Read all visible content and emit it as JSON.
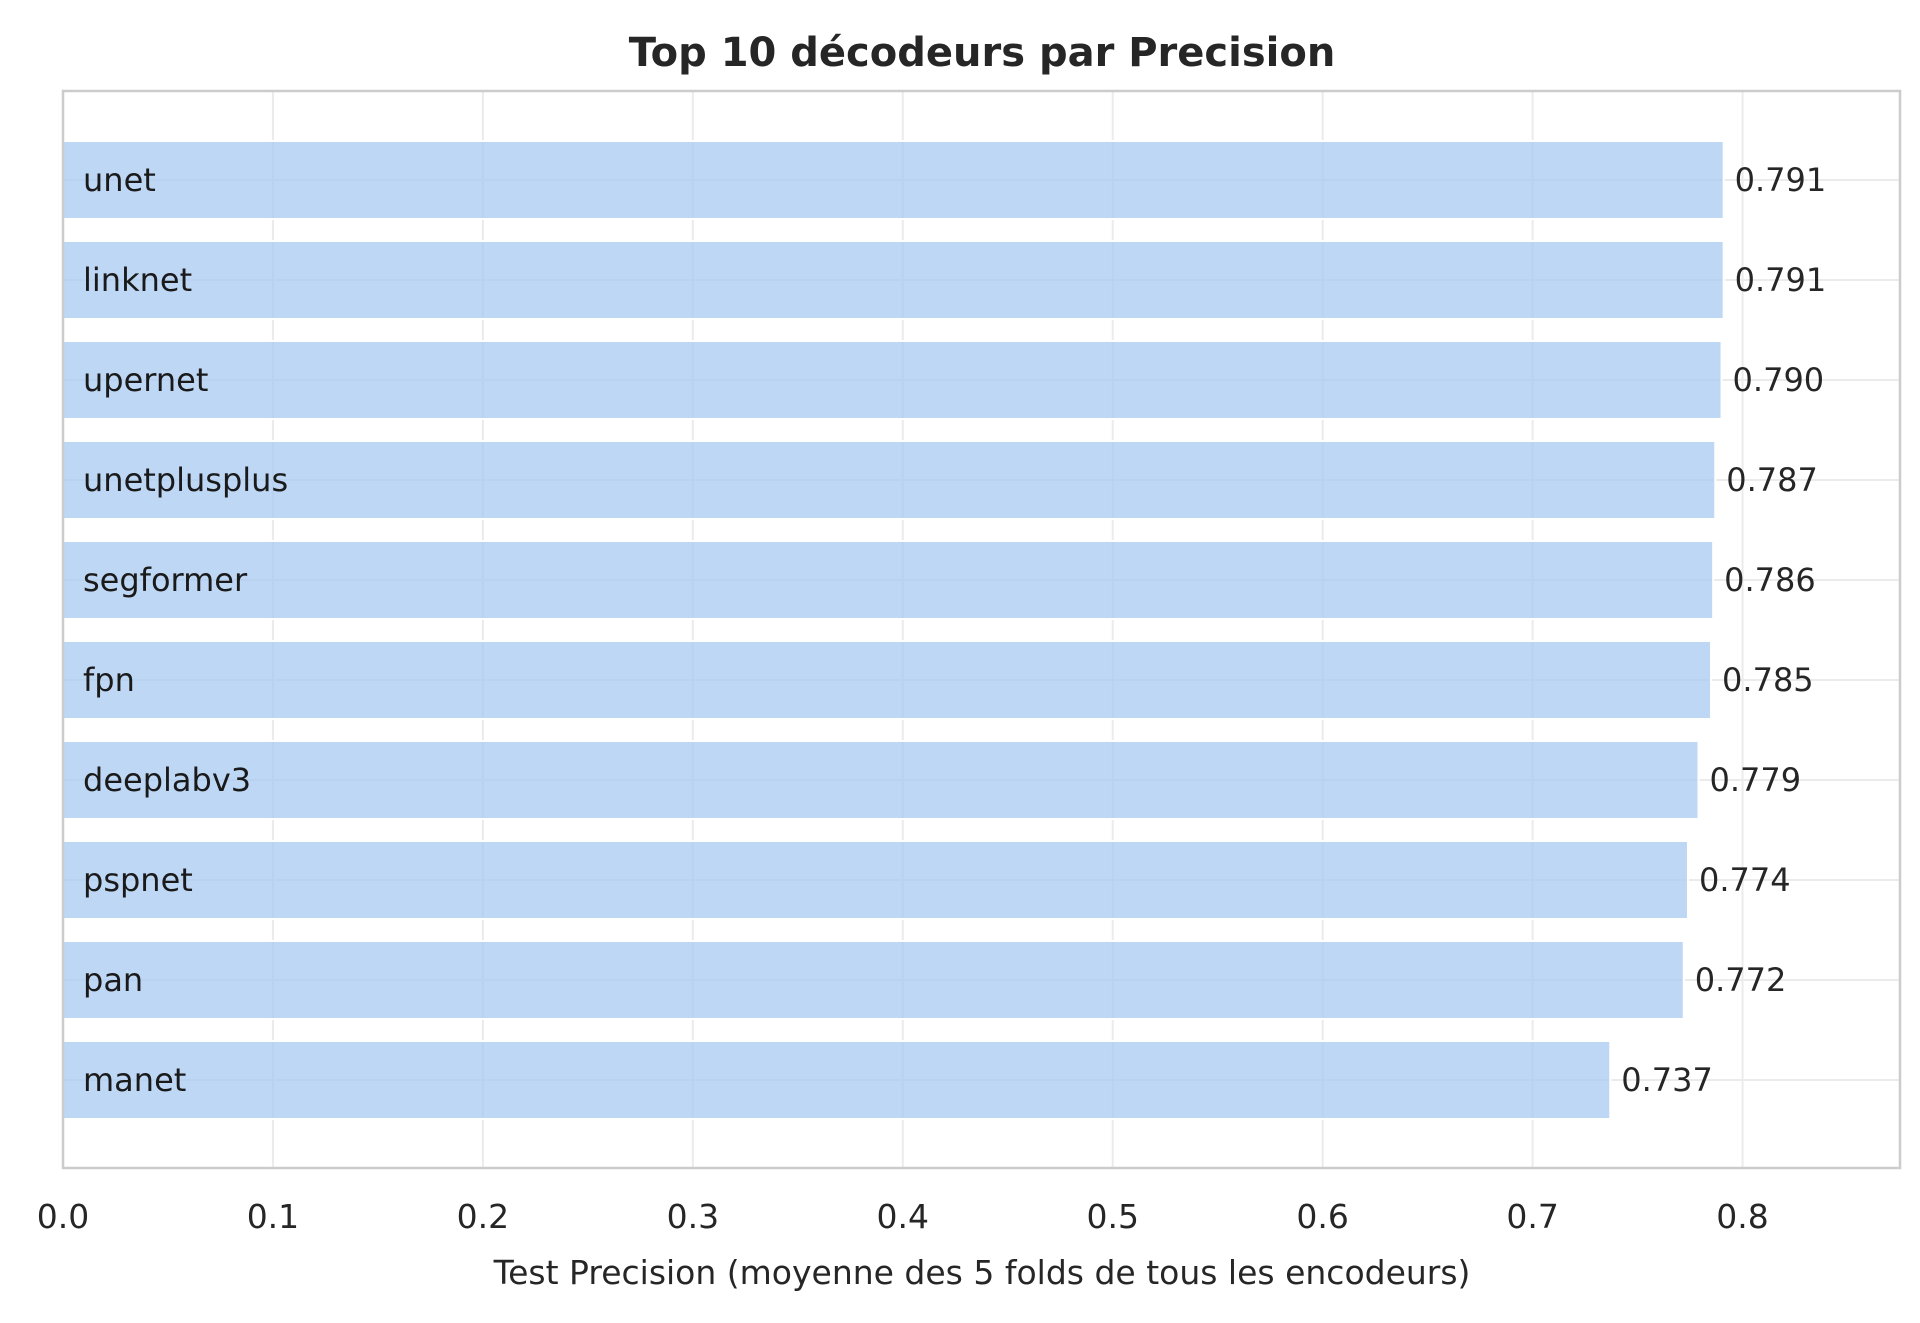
{
  "chart_data": {
    "type": "bar",
    "orientation": "horizontal",
    "title": "Top 10 décodeurs par Precision",
    "xlabel": "Test Precision (moyenne des 5 folds de tous les encodeurs)",
    "ylabel": "",
    "xlim": [
      0,
      0.875
    ],
    "xticks": [
      "0.0",
      "0.1",
      "0.2",
      "0.3",
      "0.4",
      "0.5",
      "0.6",
      "0.7",
      "0.8"
    ],
    "grid": true,
    "bar_color": "#a8caf2",
    "categories": [
      "unet",
      "linknet",
      "upernet",
      "unetplusplus",
      "segformer",
      "fpn",
      "deeplabv3",
      "pspnet",
      "pan",
      "manet"
    ],
    "values": [
      0.791,
      0.791,
      0.79,
      0.787,
      0.786,
      0.785,
      0.779,
      0.774,
      0.772,
      0.737
    ],
    "value_labels": [
      "0.791",
      "0.791",
      "0.790",
      "0.787",
      "0.786",
      "0.785",
      "0.779",
      "0.774",
      "0.772",
      "0.737"
    ]
  }
}
